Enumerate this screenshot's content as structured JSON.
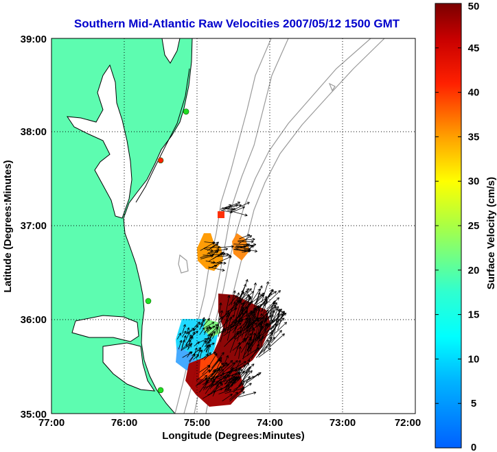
{
  "title": "Southern Mid-Atlantic Raw Velocities 2007/05/12 1500 GMT",
  "x_axis": {
    "label": "Longitude (Degrees:Minutes)",
    "ticks": [
      "77:00",
      "76:00",
      "75:00",
      "74:00",
      "73:00",
      "72:00"
    ]
  },
  "y_axis": {
    "label": "Latitude (Degrees:Minutes)",
    "ticks": [
      "35:00",
      "36:00",
      "37:00",
      "38:00",
      "39:00"
    ]
  },
  "colorbar": {
    "label": "Surface Velocity (cm/s)",
    "ticks": [
      "0",
      "5",
      "10",
      "15",
      "20",
      "25",
      "30",
      "35",
      "40",
      "45",
      "50"
    ],
    "range": [
      0,
      50
    ],
    "colormap": "jet"
  },
  "colors": {
    "title": "#0000cc",
    "land": "#5dfcb0",
    "coastline": "#000000",
    "bathymetry": "#999999",
    "grid": "#000000",
    "station_green": "#22dd22",
    "station_red": "#ff2200"
  },
  "chart_data": {
    "type": "map",
    "lon_range": [
      -77,
      -72
    ],
    "lat_range": [
      35,
      39
    ],
    "grid": true,
    "stations": [
      {
        "lon": -75.15,
        "lat": 38.22,
        "color": "green"
      },
      {
        "lon": -75.5,
        "lat": 37.7,
        "color": "red"
      },
      {
        "lon": -75.67,
        "lat": 36.2,
        "color": "green"
      },
      {
        "lon": -75.5,
        "lat": 35.25,
        "color": "green"
      }
    ],
    "velocity_patches": [
      {
        "lon": -74.8,
        "lat": 37.13,
        "speed": 42
      },
      {
        "lon": -74.9,
        "lat": 36.75,
        "speed": 32
      },
      {
        "lon": -74.5,
        "lat": 36.75,
        "speed": 36
      },
      {
        "lon": -75.1,
        "lat": 36.0,
        "speed": 16
      },
      {
        "lon": -75.2,
        "lat": 35.8,
        "speed": 9
      },
      {
        "lon": -74.55,
        "lat": 35.85,
        "speed": 49
      },
      {
        "lon": -74.85,
        "lat": 35.45,
        "speed": 46
      }
    ]
  }
}
